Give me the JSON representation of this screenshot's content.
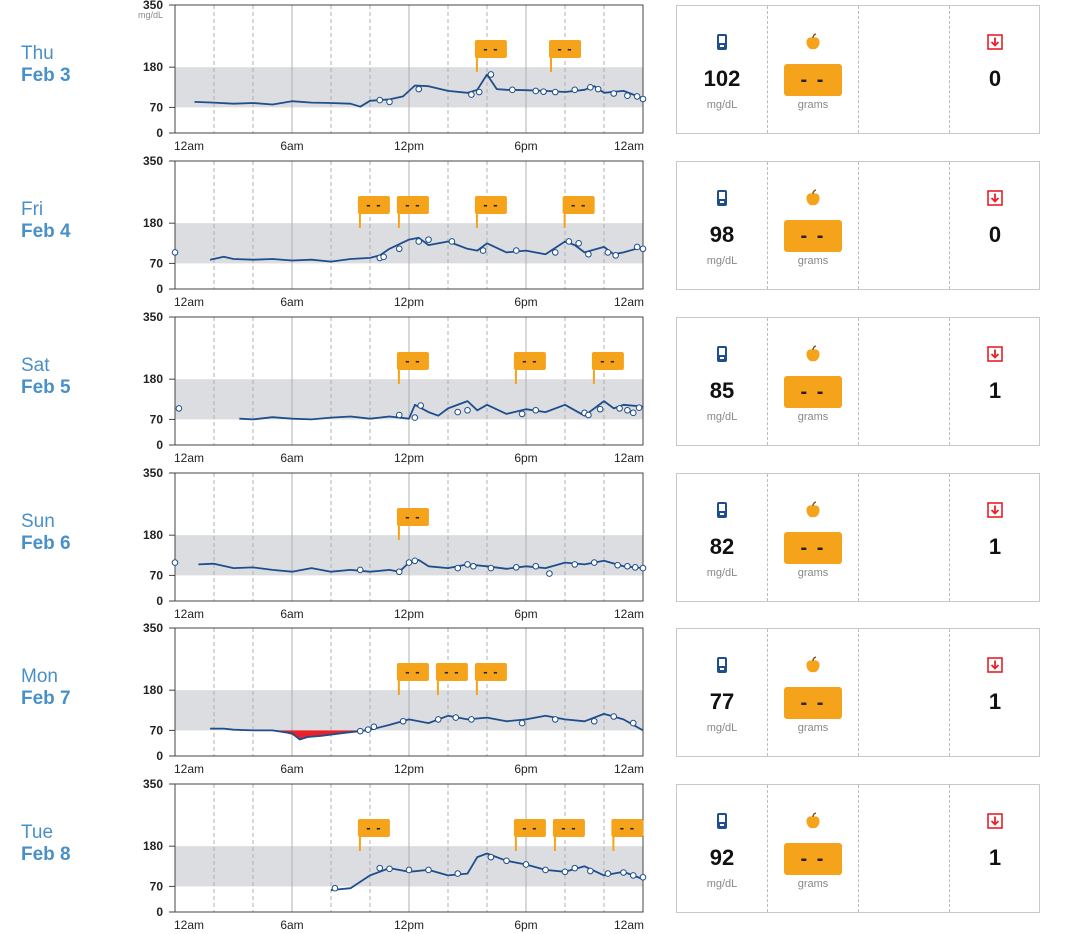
{
  "y_axis": {
    "ticks": [
      "0",
      "70",
      "180",
      "350"
    ],
    "unit": "mg/dL"
  },
  "x_axis": {
    "ticks": [
      "12am",
      "6am",
      "12pm",
      "6pm",
      "12am"
    ]
  },
  "icons": {
    "meter": "glucose-meter-icon",
    "carbs": "apple-icon",
    "hypo": "hypo-arrow-icon"
  },
  "colors": {
    "line": "#1f4e8c",
    "target_band": "#dcdde0",
    "carb_marker": "#f5a31a",
    "low": "#e8212a",
    "day_label": "#4a90c8"
  },
  "chart_data": {
    "type": "line",
    "y_unit": "mg/dL",
    "ylim": [
      0,
      350
    ],
    "target_range": [
      70,
      180
    ],
    "xlim_hours": [
      0,
      24
    ],
    "days": [
      {
        "day": "Thu",
        "date": "Feb 3",
        "summary": {
          "avg_bg": "102",
          "bg_unit": "mg/dL",
          "carbs": "- -",
          "carbs_unit": "grams",
          "hypos": "0"
        },
        "line": [
          [
            1,
            85
          ],
          [
            2,
            83
          ],
          [
            3,
            80
          ],
          [
            4,
            82
          ],
          [
            5,
            78
          ],
          [
            6,
            87
          ],
          [
            7,
            83
          ],
          [
            8,
            82
          ],
          [
            9,
            80
          ],
          [
            9.5,
            72
          ],
          [
            10,
            88
          ],
          [
            11,
            92
          ],
          [
            11.7,
            100
          ],
          [
            12.3,
            130
          ],
          [
            13,
            128
          ],
          [
            14,
            115
          ],
          [
            15,
            110
          ],
          [
            15.5,
            118
          ],
          [
            16,
            160
          ],
          [
            16.5,
            120
          ],
          [
            17,
            118
          ],
          [
            18,
            117
          ],
          [
            19,
            115
          ],
          [
            20,
            112
          ],
          [
            21,
            118
          ],
          [
            21.5,
            128
          ],
          [
            22,
            110
          ],
          [
            23,
            115
          ],
          [
            24,
            95
          ]
        ],
        "points": [
          [
            10.5,
            90
          ],
          [
            11,
            85
          ],
          [
            12.5,
            120
          ],
          [
            15.2,
            105
          ],
          [
            15.6,
            112
          ],
          [
            16.2,
            160
          ],
          [
            17.3,
            118
          ],
          [
            18.5,
            115
          ],
          [
            18.9,
            113
          ],
          [
            19.5,
            112
          ],
          [
            20.5,
            118
          ],
          [
            21.3,
            125
          ],
          [
            21.7,
            120
          ],
          [
            22.5,
            108
          ],
          [
            23.2,
            102
          ],
          [
            23.7,
            100
          ],
          [
            24,
            93
          ]
        ],
        "carb_markers": [
          {
            "hour": 16.2,
            "label": "- -"
          },
          {
            "hour": 20.0,
            "label": "- -"
          }
        ],
        "low_area": []
      },
      {
        "day": "Fri",
        "date": "Feb 4",
        "summary": {
          "avg_bg": "98",
          "bg_unit": "mg/dL",
          "carbs": "- -",
          "carbs_unit": "grams",
          "hypos": "0"
        },
        "line": [
          [
            1.8,
            80
          ],
          [
            2.5,
            88
          ],
          [
            3,
            82
          ],
          [
            4,
            80
          ],
          [
            5,
            82
          ],
          [
            6,
            78
          ],
          [
            7,
            80
          ],
          [
            8,
            75
          ],
          [
            9,
            82
          ],
          [
            10,
            85
          ],
          [
            10.5,
            92
          ],
          [
            11,
            110
          ],
          [
            12,
            135
          ],
          [
            12.5,
            140
          ],
          [
            13,
            120
          ],
          [
            14,
            130
          ],
          [
            15,
            110
          ],
          [
            15.5,
            105
          ],
          [
            16,
            125
          ],
          [
            17,
            100
          ],
          [
            18,
            105
          ],
          [
            19,
            95
          ],
          [
            20,
            130
          ],
          [
            20.5,
            120
          ],
          [
            21,
            100
          ],
          [
            22,
            115
          ],
          [
            22.5,
            95
          ],
          [
            23,
            100
          ],
          [
            24,
            115
          ]
        ],
        "points": [
          [
            0,
            100
          ],
          [
            10.5,
            85
          ],
          [
            10.7,
            88
          ],
          [
            11.5,
            110
          ],
          [
            12.5,
            130
          ],
          [
            13,
            135
          ],
          [
            14.2,
            130
          ],
          [
            15.8,
            105
          ],
          [
            17.5,
            105
          ],
          [
            19.5,
            100
          ],
          [
            20.2,
            130
          ],
          [
            20.7,
            125
          ],
          [
            21.2,
            95
          ],
          [
            22.2,
            100
          ],
          [
            22.6,
            92
          ],
          [
            23.7,
            115
          ],
          [
            24,
            110
          ]
        ],
        "carb_markers": [
          {
            "hour": 10.2,
            "label": "- -"
          },
          {
            "hour": 12.2,
            "label": "- -"
          },
          {
            "hour": 16.2,
            "label": "- -"
          },
          {
            "hour": 20.7,
            "label": "- -"
          }
        ],
        "low_area": []
      },
      {
        "day": "Sat",
        "date": "Feb 5",
        "summary": {
          "avg_bg": "85",
          "bg_unit": "mg/dL",
          "carbs": "- -",
          "carbs_unit": "grams",
          "hypos": "1"
        },
        "line": [
          [
            3.3,
            72
          ],
          [
            4,
            70
          ],
          [
            5,
            76
          ],
          [
            6,
            72
          ],
          [
            7,
            70
          ],
          [
            8,
            75
          ],
          [
            9,
            78
          ],
          [
            10,
            72
          ],
          [
            11,
            78
          ],
          [
            12,
            72
          ],
          [
            12.3,
            110
          ],
          [
            13,
            90
          ],
          [
            13.5,
            80
          ],
          [
            14,
            100
          ],
          [
            15,
            120
          ],
          [
            15.5,
            95
          ],
          [
            16,
            110
          ],
          [
            17,
            85
          ],
          [
            18,
            98
          ],
          [
            19,
            90
          ],
          [
            20,
            110
          ],
          [
            21,
            80
          ],
          [
            22,
            120
          ],
          [
            22.5,
            100
          ],
          [
            23,
            110
          ],
          [
            24,
            105
          ]
        ],
        "points": [
          [
            0.2,
            100
          ],
          [
            11.5,
            82
          ],
          [
            12.3,
            75
          ],
          [
            12.6,
            108
          ],
          [
            14.5,
            90
          ],
          [
            15,
            95
          ],
          [
            17.8,
            85
          ],
          [
            18.5,
            95
          ],
          [
            21,
            88
          ],
          [
            21.2,
            82
          ],
          [
            21.8,
            98
          ],
          [
            22.8,
            100
          ],
          [
            23.2,
            95
          ],
          [
            23.5,
            88
          ],
          [
            23.8,
            102
          ]
        ],
        "carb_markers": [
          {
            "hour": 12.2,
            "label": "- -"
          },
          {
            "hour": 18.2,
            "label": "- -"
          },
          {
            "hour": 22.2,
            "label": "- -"
          }
        ],
        "low_area": []
      },
      {
        "day": "Sun",
        "date": "Feb 6",
        "summary": {
          "avg_bg": "82",
          "bg_unit": "mg/dL",
          "carbs": "- -",
          "carbs_unit": "grams",
          "hypos": "1"
        },
        "line": [
          [
            1.2,
            100
          ],
          [
            2,
            102
          ],
          [
            3,
            90
          ],
          [
            4,
            92
          ],
          [
            5,
            85
          ],
          [
            6,
            80
          ],
          [
            7,
            90
          ],
          [
            8,
            80
          ],
          [
            9,
            85
          ],
          [
            10,
            80
          ],
          [
            11,
            85
          ],
          [
            11.5,
            80
          ],
          [
            12,
            105
          ],
          [
            12.5,
            112
          ],
          [
            13,
            95
          ],
          [
            14,
            90
          ],
          [
            15,
            100
          ],
          [
            16,
            95
          ],
          [
            17,
            88
          ],
          [
            18,
            95
          ],
          [
            19,
            90
          ],
          [
            20,
            105
          ],
          [
            21,
            100
          ],
          [
            22,
            110
          ],
          [
            23,
            95
          ],
          [
            24,
            90
          ]
        ],
        "points": [
          [
            0,
            105
          ],
          [
            9.5,
            85
          ],
          [
            11.5,
            80
          ],
          [
            12,
            105
          ],
          [
            12.3,
            110
          ],
          [
            14.5,
            90
          ],
          [
            15,
            100
          ],
          [
            15.3,
            95
          ],
          [
            16.2,
            90
          ],
          [
            17.5,
            92
          ],
          [
            18.5,
            95
          ],
          [
            19.2,
            75
          ],
          [
            20.5,
            100
          ],
          [
            21.5,
            105
          ],
          [
            22.7,
            98
          ],
          [
            23.2,
            95
          ],
          [
            23.6,
            92
          ],
          [
            24,
            90
          ]
        ],
        "carb_markers": [
          {
            "hour": 12.2,
            "label": "- -"
          }
        ],
        "low_area": []
      },
      {
        "day": "Mon",
        "date": "Feb 7",
        "summary": {
          "avg_bg": "77",
          "bg_unit": "mg/dL",
          "carbs": "- -",
          "carbs_unit": "grams",
          "hypos": "1"
        },
        "line": [
          [
            1.8,
            75
          ],
          [
            2.5,
            75
          ],
          [
            3,
            72
          ],
          [
            4,
            70
          ],
          [
            5,
            70
          ],
          [
            6,
            62
          ],
          [
            6.4,
            45
          ],
          [
            6.8,
            52
          ],
          [
            7.5,
            55
          ],
          [
            8.5,
            62
          ],
          [
            9.5,
            68
          ],
          [
            10,
            72
          ],
          [
            11,
            85
          ],
          [
            12,
            100
          ],
          [
            13,
            90
          ],
          [
            14,
            110
          ],
          [
            15,
            100
          ],
          [
            16,
            105
          ],
          [
            17,
            95
          ],
          [
            18,
            100
          ],
          [
            19,
            110
          ],
          [
            20,
            100
          ],
          [
            21,
            95
          ],
          [
            22,
            115
          ],
          [
            23,
            100
          ],
          [
            24,
            70
          ]
        ],
        "points": [
          [
            9.5,
            68
          ],
          [
            9.9,
            72
          ],
          [
            10.2,
            80
          ],
          [
            11.7,
            95
          ],
          [
            13.5,
            100
          ],
          [
            14.4,
            105
          ],
          [
            15.2,
            100
          ],
          [
            17.8,
            90
          ],
          [
            19.5,
            100
          ],
          [
            21.5,
            95
          ],
          [
            22.5,
            108
          ],
          [
            23.5,
            90
          ]
        ],
        "carb_markers": [
          {
            "hour": 12.2,
            "label": "- -"
          },
          {
            "hour": 14.2,
            "label": "- -"
          },
          {
            "hour": 16.2,
            "label": "- -"
          }
        ],
        "low_area": [
          [
            5.0,
            70
          ],
          [
            5.5,
            65
          ],
          [
            6.0,
            58
          ],
          [
            6.4,
            45
          ],
          [
            6.8,
            50
          ],
          [
            7.5,
            55
          ],
          [
            8.5,
            62
          ],
          [
            9.5,
            68
          ],
          [
            10,
            70
          ]
        ]
      },
      {
        "day": "Tue",
        "date": "Feb 8",
        "summary": {
          "avg_bg": "92",
          "bg_unit": "mg/dL",
          "carbs": "- -",
          "carbs_unit": "grams",
          "hypos": "1"
        },
        "line": [
          [
            8,
            60
          ],
          [
            9,
            65
          ],
          [
            10,
            100
          ],
          [
            11,
            120
          ],
          [
            12,
            110
          ],
          [
            13,
            115
          ],
          [
            14,
            100
          ],
          [
            15,
            105
          ],
          [
            15.5,
            150
          ],
          [
            16,
            160
          ],
          [
            17,
            140
          ],
          [
            18,
            130
          ],
          [
            19,
            115
          ],
          [
            20,
            110
          ],
          [
            21,
            125
          ],
          [
            22,
            100
          ],
          [
            23,
            110
          ],
          [
            24,
            90
          ]
        ],
        "points": [
          [
            8.2,
            65
          ],
          [
            10.5,
            120
          ],
          [
            11,
            118
          ],
          [
            12,
            115
          ],
          [
            13,
            115
          ],
          [
            14.5,
            105
          ],
          [
            16.2,
            150
          ],
          [
            17,
            140
          ],
          [
            18,
            130
          ],
          [
            19,
            115
          ],
          [
            20,
            110
          ],
          [
            20.5,
            120
          ],
          [
            21.3,
            112
          ],
          [
            22.2,
            105
          ],
          [
            23,
            108
          ],
          [
            23.5,
            100
          ],
          [
            24,
            95
          ]
        ],
        "carb_markers": [
          {
            "hour": 10.2,
            "label": "- -"
          },
          {
            "hour": 18.2,
            "label": "- -"
          },
          {
            "hour": 20.2,
            "label": "- -"
          },
          {
            "hour": 23.2,
            "label": "- -"
          }
        ],
        "low_area": []
      }
    ]
  }
}
